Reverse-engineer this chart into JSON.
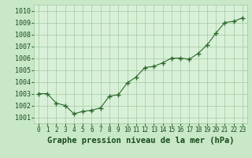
{
  "x": [
    0,
    1,
    2,
    3,
    4,
    5,
    6,
    7,
    8,
    9,
    10,
    11,
    12,
    13,
    14,
    15,
    16,
    17,
    18,
    19,
    20,
    21,
    22,
    23
  ],
  "y": [
    1003.0,
    1003.0,
    1002.2,
    1002.0,
    1001.3,
    1001.5,
    1001.6,
    1001.8,
    1002.8,
    1002.9,
    1003.9,
    1004.4,
    1005.2,
    1005.3,
    1005.6,
    1006.0,
    1006.0,
    1005.9,
    1006.4,
    1007.1,
    1008.1,
    1009.0,
    1009.1,
    1009.4
  ],
  "line_color": "#2d6a2d",
  "marker_color": "#2d6a2d",
  "bg_color": "#c8e8c8",
  "plot_bg_color": "#d8f0d8",
  "grid_color": "#a0c8a0",
  "title": "Graphe pression niveau de la mer (hPa)",
  "ylim": [
    1000.5,
    1010.5
  ],
  "yticks": [
    1001,
    1002,
    1003,
    1004,
    1005,
    1006,
    1007,
    1008,
    1009,
    1010
  ],
  "title_color": "#1a4a1a",
  "title_fontsize": 7.5,
  "tick_fontsize": 6.0,
  "xtick_fontsize": 5.5
}
